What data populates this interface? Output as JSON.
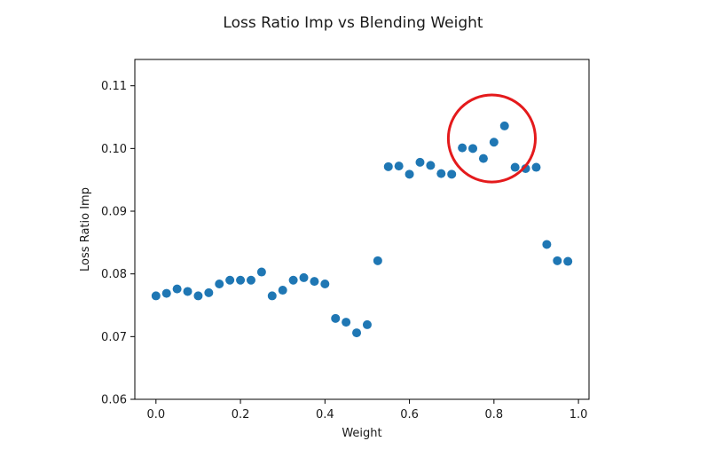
{
  "chart_data": {
    "type": "scatter",
    "title": "Loss Ratio Imp vs Blending Weight",
    "xlabel": "Weight",
    "ylabel": "Loss Ratio Imp",
    "xlim": [
      -0.05,
      1.025
    ],
    "ylim": [
      0.06,
      0.1142
    ],
    "xticks": [
      0.0,
      0.2,
      0.4,
      0.6,
      0.8,
      1.0
    ],
    "xtick_labels": [
      "0.0",
      "0.2",
      "0.4",
      "0.6",
      "0.8",
      "1.0"
    ],
    "yticks": [
      0.06,
      0.07,
      0.08,
      0.09,
      0.1,
      0.11
    ],
    "ytick_labels": [
      "0.06",
      "0.07",
      "0.08",
      "0.09",
      "0.10",
      "0.11"
    ],
    "grid": false,
    "marker_color": "#1f77b4",
    "series": [
      {
        "x": [
          0.0,
          0.025,
          0.05,
          0.075,
          0.1,
          0.125,
          0.15,
          0.175,
          0.2,
          0.225,
          0.25,
          0.275,
          0.3,
          0.325,
          0.35,
          0.375,
          0.4,
          0.425,
          0.45,
          0.475,
          0.5,
          0.525,
          0.55,
          0.575,
          0.6,
          0.625,
          0.65,
          0.675,
          0.7,
          0.725,
          0.75,
          0.775,
          0.8,
          0.825,
          0.85,
          0.875,
          0.9,
          0.925,
          0.95,
          0.975
        ],
        "y": [
          0.0765,
          0.0769,
          0.0776,
          0.0772,
          0.0765,
          0.077,
          0.0784,
          0.079,
          0.079,
          0.079,
          0.0803,
          0.0765,
          0.0774,
          0.079,
          0.0794,
          0.0788,
          0.0784,
          0.0729,
          0.0723,
          0.0706,
          0.0719,
          0.0821,
          0.0971,
          0.0972,
          0.0959,
          0.0978,
          0.0973,
          0.096,
          0.0959,
          0.1001,
          0.1,
          0.0984,
          0.101,
          0.1036,
          0.097,
          0.0968,
          0.097,
          0.0847,
          0.0821,
          0.082
        ]
      }
    ],
    "annotations": [
      {
        "type": "circle",
        "color": "#e41a1c",
        "center": [
          0.795,
          0.1016
        ],
        "radius_data_x": 0.103
      }
    ]
  }
}
